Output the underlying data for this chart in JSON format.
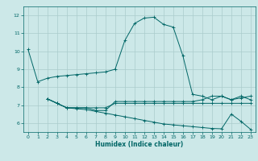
{
  "title": "",
  "xlabel": "Humidex (Indice chaleur)",
  "bg_color": "#cce8e8",
  "grid_color": "#aacccc",
  "line_color": "#006666",
  "xlim": [
    -0.5,
    23.5
  ],
  "ylim": [
    5.5,
    12.5
  ],
  "yticks": [
    6,
    7,
    8,
    9,
    10,
    11,
    12
  ],
  "xticks": [
    0,
    1,
    2,
    3,
    4,
    5,
    6,
    7,
    8,
    9,
    10,
    11,
    12,
    13,
    14,
    15,
    16,
    17,
    18,
    19,
    20,
    21,
    22,
    23
  ],
  "curve1_x": [
    0,
    1,
    2,
    3,
    4,
    5,
    6,
    7,
    8,
    9,
    10,
    11,
    12,
    13,
    14,
    15,
    16,
    17,
    18,
    19,
    20,
    21,
    22,
    23
  ],
  "curve1_y": [
    10.1,
    8.3,
    8.5,
    8.6,
    8.65,
    8.7,
    8.75,
    8.8,
    8.85,
    9.0,
    10.6,
    11.55,
    11.85,
    11.9,
    11.5,
    11.35,
    9.75,
    7.6,
    7.5,
    7.3,
    7.5,
    7.3,
    7.4,
    7.5
  ],
  "curve2_x": [
    2,
    3,
    4,
    5,
    6,
    7,
    8,
    9,
    10,
    11,
    12,
    13,
    14,
    15,
    16,
    17,
    18,
    19,
    20,
    21,
    22,
    23
  ],
  "curve2_y": [
    7.35,
    7.1,
    6.85,
    6.85,
    6.85,
    6.85,
    6.85,
    7.1,
    7.1,
    7.1,
    7.1,
    7.1,
    7.1,
    7.1,
    7.1,
    7.1,
    7.1,
    7.1,
    7.1,
    7.1,
    7.1,
    7.1
  ],
  "curve3_x": [
    2,
    3,
    4,
    5,
    6,
    7,
    8,
    9,
    10,
    11,
    12,
    13,
    14,
    15,
    16,
    17,
    18,
    19,
    20,
    21,
    22,
    23
  ],
  "curve3_y": [
    7.35,
    7.1,
    6.85,
    6.85,
    6.85,
    6.7,
    6.7,
    7.2,
    7.2,
    7.2,
    7.2,
    7.2,
    7.2,
    7.2,
    7.2,
    7.2,
    7.3,
    7.5,
    7.5,
    7.3,
    7.5,
    7.3
  ],
  "curve4_x": [
    2,
    3,
    4,
    5,
    6,
    7,
    8,
    9,
    10,
    11,
    12,
    13,
    14,
    15,
    16,
    17,
    18,
    19,
    20,
    21,
    22,
    23
  ],
  "curve4_y": [
    7.35,
    7.1,
    6.85,
    6.8,
    6.75,
    6.65,
    6.55,
    6.45,
    6.35,
    6.25,
    6.15,
    6.05,
    5.95,
    5.9,
    5.85,
    5.8,
    5.75,
    5.7,
    5.68,
    6.5,
    6.1,
    5.65
  ]
}
